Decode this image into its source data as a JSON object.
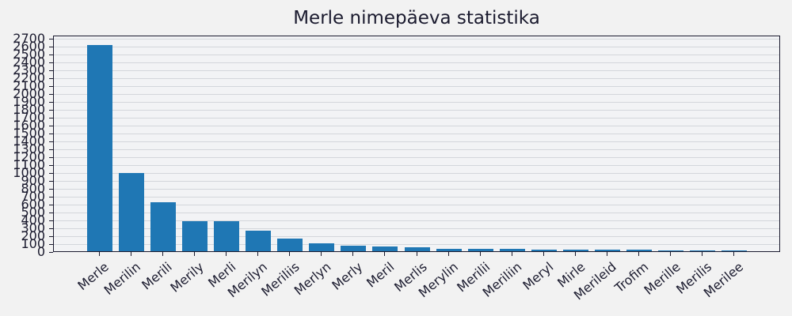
{
  "chart_data": {
    "type": "bar",
    "title": "Merle nimepäeva statistika",
    "xlabel": "",
    "ylabel": "",
    "ylim": [
      0,
      2740
    ],
    "yticks": [
      0,
      100,
      200,
      300,
      400,
      500,
      600,
      700,
      800,
      900,
      1000,
      1100,
      1200,
      1300,
      1400,
      1500,
      1600,
      1700,
      1800,
      1900,
      2000,
      2100,
      2200,
      2300,
      2400,
      2500,
      2600,
      2700
    ],
    "grid": true,
    "bar_color": "#1f77b4",
    "categories": [
      "Merle",
      "Merilin",
      "Merili",
      "Merily",
      "Merli",
      "Merilyn",
      "Meriliis",
      "Merlyn",
      "Merly",
      "Meril",
      "Merlis",
      "Merylin",
      "Merilii",
      "Meriliin",
      "Meryl",
      "Mirle",
      "Merileid",
      "Trofim",
      "Merille",
      "Merilis",
      "Merilee"
    ],
    "values": [
      2610,
      990,
      620,
      380,
      380,
      260,
      160,
      100,
      70,
      60,
      50,
      35,
      35,
      30,
      25,
      25,
      25,
      25,
      15,
      15,
      15
    ]
  }
}
